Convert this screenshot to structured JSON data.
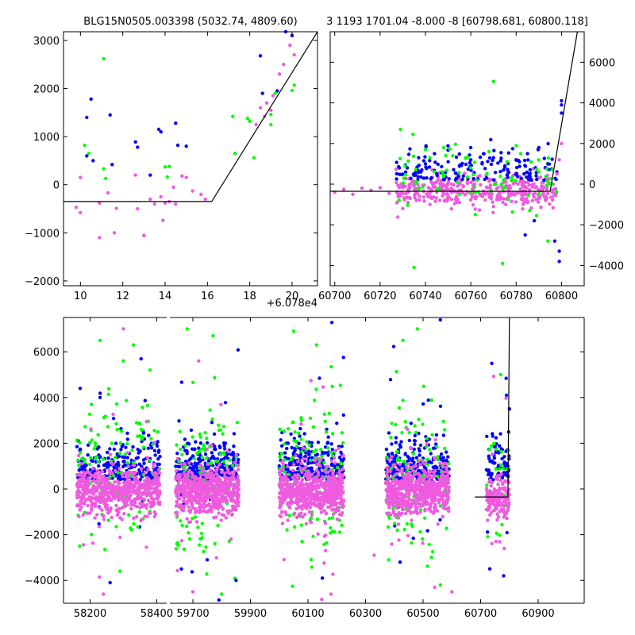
{
  "chart_data": [
    {
      "id": "top-left",
      "type": "scatter",
      "title": "BLG15N0505.003398 (5032.74, 4809.60)",
      "offset_label": "+6.078e4",
      "xlim": [
        9.2,
        21.2
      ],
      "ylim": [
        -2100,
        3180
      ],
      "xticks": [
        "10",
        "12",
        "14",
        "16",
        "18",
        "20"
      ],
      "xtick_values": [
        10,
        12,
        14,
        16,
        18,
        20
      ],
      "yticks": [
        "−2000",
        "−1000",
        "0",
        "1000",
        "2000",
        "3000"
      ],
      "ytick_values": [
        -2000,
        -1000,
        0,
        1000,
        2000,
        3000
      ],
      "ytick_side": "left",
      "model_line": [
        [
          9.2,
          -350
        ],
        [
          16.2,
          -350
        ],
        [
          21.2,
          3180
        ]
      ],
      "series": [
        {
          "color": "#0000ff",
          "points": [
            [
              10.3,
              1400
            ],
            [
              10.5,
              1780
            ],
            [
              10.3,
              600
            ],
            [
              10.6,
              500
            ],
            [
              11.4,
              1450
            ],
            [
              11.5,
              420
            ],
            [
              12.6,
              890
            ],
            [
              12.7,
              780
            ],
            [
              13.7,
              1150
            ],
            [
              13.8,
              1100
            ],
            [
              14.5,
              1280
            ],
            [
              14.6,
              820
            ],
            [
              15.0,
              800
            ],
            [
              13.3,
              200
            ],
            [
              18.5,
              2680
            ],
            [
              19.7,
              3180
            ],
            [
              20.0,
              3100
            ],
            [
              19.3,
              1950
            ],
            [
              18.6,
              1900
            ]
          ]
        },
        {
          "color": "#00ff00",
          "points": [
            [
              10.4,
              650
            ],
            [
              10.2,
              820
            ],
            [
              11.1,
              2620
            ],
            [
              11.1,
              330
            ],
            [
              11.2,
              130
            ],
            [
              14.0,
              370
            ],
            [
              14.2,
              380
            ],
            [
              14.1,
              160
            ],
            [
              17.2,
              1420
            ],
            [
              17.3,
              650
            ],
            [
              17.9,
              1380
            ],
            [
              18.0,
              1320
            ],
            [
              19.0,
              1460
            ],
            [
              19.0,
              1250
            ],
            [
              19.2,
              1900
            ],
            [
              20.0,
              1960
            ],
            [
              20.1,
              2070
            ],
            [
              18.2,
              560
            ]
          ]
        },
        {
          "color": "#ee5bdf",
          "points": [
            [
              9.8,
              -470
            ],
            [
              10.0,
              150
            ],
            [
              10.0,
              -580
            ],
            [
              10.9,
              -1100
            ],
            [
              10.9,
              -380
            ],
            [
              11.3,
              -170
            ],
            [
              11.6,
              -1000
            ],
            [
              11.7,
              -490
            ],
            [
              12.6,
              200
            ],
            [
              12.7,
              -500
            ],
            [
              13.0,
              -1050
            ],
            [
              13.0,
              -1060
            ],
            [
              13.3,
              -300
            ],
            [
              13.5,
              -400
            ],
            [
              13.9,
              -740
            ],
            [
              14.4,
              -50
            ],
            [
              14.5,
              -400
            ],
            [
              14.8,
              180
            ],
            [
              15.0,
              150
            ],
            [
              15.3,
              -130
            ],
            [
              15.7,
              -200
            ],
            [
              15.9,
              -300
            ],
            [
              13.8,
              -250
            ],
            [
              14.0,
              -380
            ],
            [
              14.2,
              -350
            ],
            [
              18.5,
              1600
            ],
            [
              18.8,
              1700
            ],
            [
              19.1,
              1850
            ],
            [
              19.4,
              2300
            ],
            [
              19.6,
              2500
            ],
            [
              19.9,
              2900
            ],
            [
              20.1,
              2700
            ],
            [
              18.3,
              1250
            ],
            [
              18.7,
              1420
            ],
            [
              19.0,
              1550
            ]
          ]
        }
      ]
    },
    {
      "id": "top-right",
      "type": "scatter",
      "title": "3 1193 1701.04 -8.000 -8 [60798.681, 60800.118]",
      "xlim": [
        60698,
        60810
      ],
      "ylim": [
        -5000,
        7500
      ],
      "xticks": [
        "60700",
        "60720",
        "60740",
        "60760",
        "60780",
        "60800"
      ],
      "xtick_values": [
        60700,
        60720,
        60740,
        60760,
        60780,
        60800
      ],
      "yticks": [
        "−4000",
        "−2000",
        "0",
        "2000",
        "4000",
        "6000"
      ],
      "ytick_values": [
        -4000,
        -2000,
        0,
        2000,
        4000,
        6000
      ],
      "ytick_side": "right",
      "model_line": [
        [
          60698,
          -350
        ],
        [
          60795,
          -350
        ],
        [
          60807,
          7500
        ]
      ],
      "cloud": {
        "x_start": 60700,
        "x_end": 60800,
        "band_center": -300,
        "band_spread": 380
      },
      "series": [
        {
          "color": "#ee5bdf",
          "points": [
            [
              60700,
              -400
            ],
            [
              60704,
              -250
            ],
            [
              60708,
              -500
            ],
            [
              60712,
              -200
            ],
            [
              60716,
              -300
            ],
            [
              60720,
              -180
            ],
            [
              60724,
              -450
            ],
            [
              60728,
              -600
            ],
            [
              60730,
              -1200
            ],
            [
              60736,
              -800
            ],
            [
              60742,
              -1000
            ],
            [
              60748,
              -500
            ],
            [
              60755,
              -900
            ],
            [
              60762,
              -700
            ],
            [
              60770,
              -1100
            ],
            [
              60778,
              -850
            ],
            [
              60785,
              -900
            ],
            [
              60790,
              -700
            ],
            [
              60796,
              -400
            ],
            [
              60798,
              500
            ],
            [
              60799,
              1200
            ],
            [
              60800,
              2000
            ]
          ]
        },
        {
          "color": "#0000ff",
          "points": [
            [
              60732,
              800
            ],
            [
              60738,
              600
            ],
            [
              60744,
              1500
            ],
            [
              60750,
              1100
            ],
            [
              60755,
              900
            ],
            [
              60760,
              1200
            ],
            [
              60765,
              1000
            ],
            [
              60770,
              1300
            ],
            [
              60775,
              900
            ],
            [
              60780,
              1200
            ],
            [
              60785,
              1500
            ],
            [
              60790,
              1800
            ],
            [
              60794,
              1000
            ],
            [
              60797,
              -2800
            ],
            [
              60799,
              -3800
            ],
            [
              60799,
              -3300
            ],
            [
              60800,
              3500
            ],
            [
              60800,
              3900
            ],
            [
              60800,
              4100
            ],
            [
              60784,
              -2500
            ],
            [
              60788,
              -1800
            ],
            [
              60760,
              1800
            ],
            [
              60740,
              1000
            ]
          ]
        },
        {
          "color": "#00ff00",
          "points": [
            [
              60729,
              2700
            ],
            [
              60735,
              -4100
            ],
            [
              60742,
              1300
            ],
            [
              60748,
              1800
            ],
            [
              60755,
              -500
            ],
            [
              60762,
              -1500
            ],
            [
              60770,
              5050
            ],
            [
              60774,
              -3900
            ],
            [
              60786,
              -1300
            ],
            [
              60794,
              -2800
            ],
            [
              60731,
              900
            ],
            [
              60740,
              1700
            ],
            [
              60752,
              1400
            ],
            [
              60760,
              800
            ],
            [
              60768,
              1600
            ],
            [
              60776,
              1100
            ],
            [
              60782,
              1500
            ],
            [
              60790,
              600
            ],
            [
              60780,
              1900
            ],
            [
              60746,
              -200
            ]
          ]
        }
      ]
    },
    {
      "id": "bottom",
      "type": "scatter",
      "xlim_segments": [
        [
          58120,
          58430
        ],
        [
          59620,
          61060
        ]
      ],
      "ylim": [
        -5000,
        7500
      ],
      "xticks": [
        "58200",
        "58400",
        "59700",
        "59900",
        "60100",
        "60300",
        "60500",
        "60700",
        "60900"
      ],
      "xtick_values": [
        58200,
        58400,
        59700,
        59900,
        60100,
        60300,
        60500,
        60700,
        60900
      ],
      "yticks": [
        "−4000",
        "−2000",
        "0",
        "2000",
        "4000",
        "6000"
      ],
      "ytick_values": [
        -4000,
        -2000,
        0,
        2000,
        4000,
        6000
      ],
      "ytick_side": "left",
      "model_line": [
        [
          60680,
          -350
        ],
        [
          60795,
          -350
        ],
        [
          60800,
          7500
        ]
      ],
      "seasons": [
        [
          58160,
          58410
        ],
        [
          59640,
          59860
        ],
        [
          60000,
          60225
        ],
        [
          60370,
          60590
        ],
        [
          60720,
          60800
        ]
      ],
      "series": [
        {
          "color": "#00ff00",
          "points": [
            [
              58230,
              6500
            ],
            [
              58330,
              6300
            ],
            [
              58300,
              5600
            ],
            [
              58380,
              5200
            ],
            [
              59680,
              7000
            ],
            [
              59770,
              6700
            ],
            [
              60050,
              6900
            ],
            [
              60130,
              6300
            ],
            [
              60430,
              6500
            ],
            [
              60480,
              7000
            ],
            [
              59800,
              -4600
            ],
            [
              58290,
              -3600
            ],
            [
              60560,
              -4200
            ],
            [
              60770,
              5000
            ]
          ]
        },
        {
          "color": "#0000ff",
          "points": [
            [
              58170,
              4400
            ],
            [
              58230,
              4000
            ],
            [
              58260,
              -4100
            ],
            [
              59660,
              -3500
            ],
            [
              59750,
              -3100
            ],
            [
              59850,
              -4000
            ],
            [
              60150,
              -3900
            ],
            [
              60420,
              -3200
            ],
            [
              60560,
              7400
            ],
            [
              60780,
              -3800
            ],
            [
              60790,
              4100
            ],
            [
              60800,
              3500
            ]
          ]
        },
        {
          "color": "#ee5bdf",
          "points": [
            [
              58300,
              7000
            ],
            [
              58240,
              -4600
            ],
            [
              59700,
              -4500
            ],
            [
              60180,
              -4600
            ],
            [
              60330,
              -2900
            ],
            [
              60540,
              -4300
            ],
            [
              60600,
              -4500
            ],
            [
              59720,
              5600
            ]
          ]
        }
      ]
    }
  ]
}
